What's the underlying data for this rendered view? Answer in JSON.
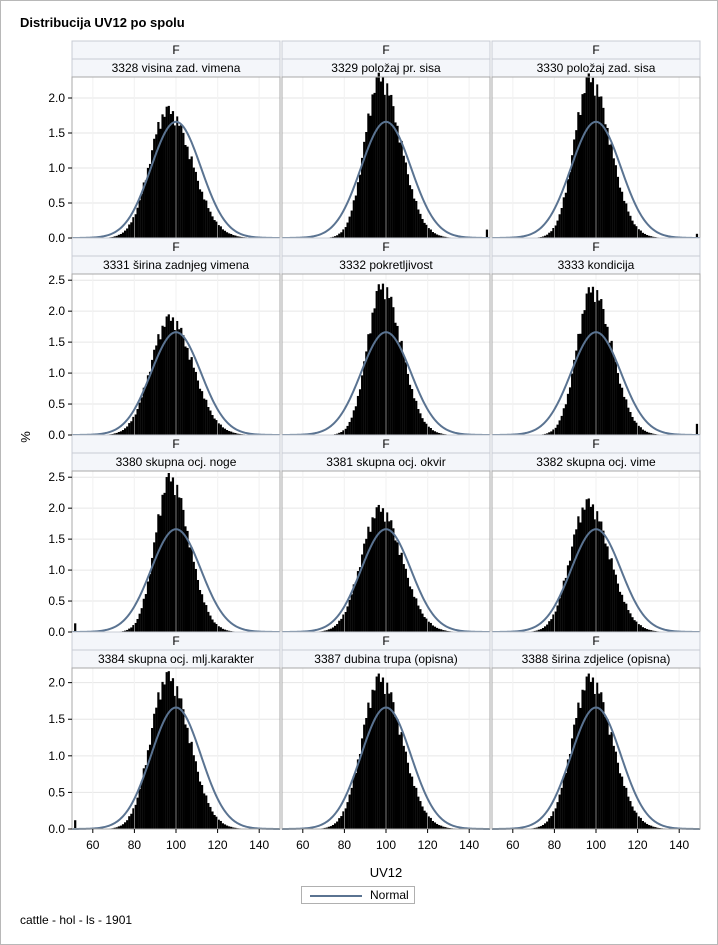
{
  "title": "Distribucija UV12 po spolu",
  "footnote": "cattle - hol - ls - 1901",
  "legend": {
    "label": "Normal",
    "color": "#5a7391"
  },
  "colors": {
    "bars": "#000000",
    "normal_curve": "#5a7391",
    "strip": "#f4f6fa",
    "grid": "#e6e6e6",
    "frame": "#a8a8a8"
  },
  "chart_data": {
    "type": "panel-histogram",
    "xlabel": "UV12",
    "ylabel": "%",
    "xlim": [
      50,
      150
    ],
    "xticks": [
      60,
      80,
      100,
      120,
      140
    ],
    "normal": {
      "mean": 100,
      "sd": 12,
      "peak_percent": 1.66
    },
    "rows": [
      {
        "ylim": [
          0,
          2.3
        ],
        "yticks": [
          0.0,
          0.5,
          1.0,
          1.5,
          2.0
        ]
      },
      {
        "ylim": [
          0,
          2.6
        ],
        "yticks": [
          0.0,
          0.5,
          1.0,
          1.5,
          2.0,
          2.5
        ]
      },
      {
        "ylim": [
          0,
          2.6
        ],
        "yticks": [
          0.0,
          0.5,
          1.0,
          1.5,
          2.0,
          2.5
        ]
      },
      {
        "ylim": [
          0,
          2.2
        ],
        "yticks": [
          0.0,
          0.5,
          1.0,
          1.5,
          2.0
        ]
      }
    ],
    "panels": [
      {
        "sex": "F",
        "trait": "3328 visina zad. vimena",
        "peak_x": 96,
        "peak_percent": 1.82,
        "left_sd": 8.6,
        "right_sd": 11.5,
        "end_spike": 0.0
      },
      {
        "sex": "F",
        "trait": "3329 položaj pr. sisa",
        "peak_x": 97,
        "peak_percent": 2.28,
        "left_sd": 7.2,
        "right_sd": 10.0,
        "end_spike": 0.12
      },
      {
        "sex": "F",
        "trait": "3330 položaj zad. sisa",
        "peak_x": 97,
        "peak_percent": 2.27,
        "left_sd": 7.4,
        "right_sd": 9.8,
        "end_spike": 0.06
      },
      {
        "sex": "F",
        "trait": "3331 širina zadnjeg vimena",
        "peak_x": 97,
        "peak_percent": 1.88,
        "left_sd": 9.0,
        "right_sd": 11.0,
        "end_spike": 0.0
      },
      {
        "sex": "F",
        "trait": "3332 pokretljivost",
        "peak_x": 98,
        "peak_percent": 2.4,
        "left_sd": 7.0,
        "right_sd": 9.4,
        "end_spike": 0.0
      },
      {
        "sex": "F",
        "trait": "3333 kondicija",
        "peak_x": 98,
        "peak_percent": 2.35,
        "left_sd": 7.2,
        "right_sd": 9.6,
        "end_spike": 0.18
      },
      {
        "sex": "F",
        "trait": "3380 skupna ocj. noge",
        "peak_x": 97,
        "peak_percent": 2.48,
        "left_sd": 7.0,
        "right_sd": 9.2,
        "end_spike": 0.0,
        "start_spike": 0.14
      },
      {
        "sex": "F",
        "trait": "3381 skupna ocj. okvir",
        "peak_x": 97,
        "peak_percent": 1.98,
        "left_sd": 8.8,
        "right_sd": 10.6,
        "end_spike": 0.0
      },
      {
        "sex": "F",
        "trait": "3382 skupna ocj. vime",
        "peak_x": 96,
        "peak_percent": 2.08,
        "left_sd": 8.2,
        "right_sd": 10.4,
        "end_spike": 0.0
      },
      {
        "sex": "F",
        "trait": "3384 skupna ocj. mlj.karakter",
        "peak_x": 96,
        "peak_percent": 2.08,
        "left_sd": 8.2,
        "right_sd": 10.4,
        "end_spike": 0.0,
        "start_spike": 0.12
      },
      {
        "sex": "F",
        "trait": "3387 dubina trupa (opisna)",
        "peak_x": 97,
        "peak_percent": 2.05,
        "left_sd": 8.4,
        "right_sd": 10.6,
        "end_spike": 0.0
      },
      {
        "sex": "F",
        "trait": "3388 širina zdjelice (opisna)",
        "peak_x": 97,
        "peak_percent": 2.05,
        "left_sd": 8.4,
        "right_sd": 10.6,
        "end_spike": 0.0
      }
    ]
  }
}
